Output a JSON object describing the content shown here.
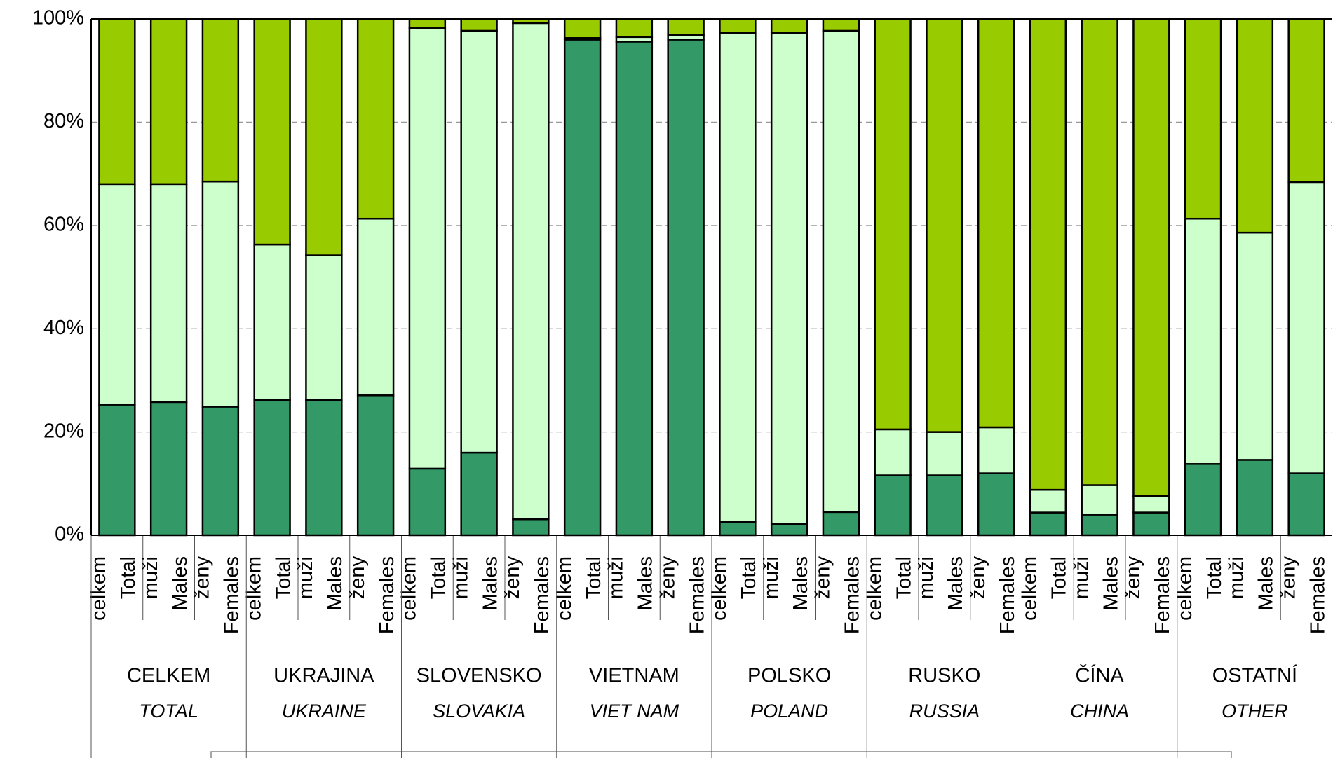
{
  "chart_data": {
    "type": "stacked_bar",
    "categories": [
      [
        "celkem",
        "Total"
      ],
      [
        "muži",
        "Males"
      ],
      [
        "ženy",
        "Females"
      ],
      [
        "celkem",
        "Total"
      ],
      [
        "muži",
        "Males"
      ],
      [
        "ženy",
        "Females"
      ],
      [
        "celkem",
        "Total"
      ],
      [
        "muži",
        "Males"
      ],
      [
        "ženy",
        "Females"
      ],
      [
        "celkem",
        "Total"
      ],
      [
        "muži",
        "Males"
      ],
      [
        "ženy",
        "Females"
      ],
      [
        "celkem",
        "Total"
      ],
      [
        "muži",
        "Males"
      ],
      [
        "ženy",
        "Females"
      ],
      [
        "celkem",
        "Total"
      ],
      [
        "muži",
        "Males"
      ],
      [
        "ženy",
        "Females"
      ],
      [
        "celkem",
        "Total"
      ],
      [
        "muži",
        "Males"
      ],
      [
        "ženy",
        "Females"
      ],
      [
        "celkem",
        "Total"
      ],
      [
        "muži",
        "Males"
      ],
      [
        "ženy",
        "Females"
      ]
    ],
    "groups": [
      [
        "CELKEM",
        "TOTAL"
      ],
      [
        "UKRAJINA",
        "UKRAINE"
      ],
      [
        "SLOVENSKO",
        "SLOVAKIA"
      ],
      [
        "VIETNAM",
        "VIET NAM"
      ],
      [
        "POLSKO",
        "POLAND"
      ],
      [
        "RUSKO",
        "RUSSIA"
      ],
      [
        "ČÍNA",
        "CHINA"
      ],
      [
        "OSTATNÍ",
        "OTHER"
      ]
    ],
    "series": [
      {
        "color": "#339966",
        "values": [
          25.3,
          25.8,
          24.9,
          26.2,
          26.2,
          27.1,
          12.9,
          16,
          3.1,
          96,
          95.6,
          96,
          2.6,
          2.2,
          4.5,
          11.6,
          11.6,
          12,
          4.4,
          4,
          4.4,
          13.8,
          14.6,
          12
        ]
      },
      {
        "color": "#ccffcc",
        "values": [
          42.7,
          42.2,
          43.6,
          30.1,
          28,
          34.2,
          85.3,
          81.7,
          96.1,
          0.3,
          0.9,
          0.9,
          94.7,
          95.1,
          93.2,
          8.9,
          8.4,
          8.9,
          4.4,
          5.7,
          3.2,
          47.5,
          44,
          56.4
        ]
      },
      {
        "color": "#99cc00",
        "values": [
          32,
          32,
          31.5,
          43.7,
          45.8,
          38.7,
          1.8,
          2.3,
          0.8,
          3.7,
          3.5,
          3.1,
          2.7,
          2.7,
          2.3,
          79.5,
          80,
          79.1,
          91.2,
          90.3,
          92.4,
          38.7,
          41.4,
          31.6
        ]
      }
    ],
    "ylim": [
      0,
      100
    ],
    "yticks": [
      {
        "value": 0,
        "label": "0%"
      },
      {
        "value": 20,
        "label": "20%"
      },
      {
        "value": 40,
        "label": "40%"
      },
      {
        "value": 60,
        "label": "60%"
      },
      {
        "value": 80,
        "label": "80%"
      },
      {
        "value": 100,
        "label": "100%"
      }
    ],
    "grid": true
  }
}
